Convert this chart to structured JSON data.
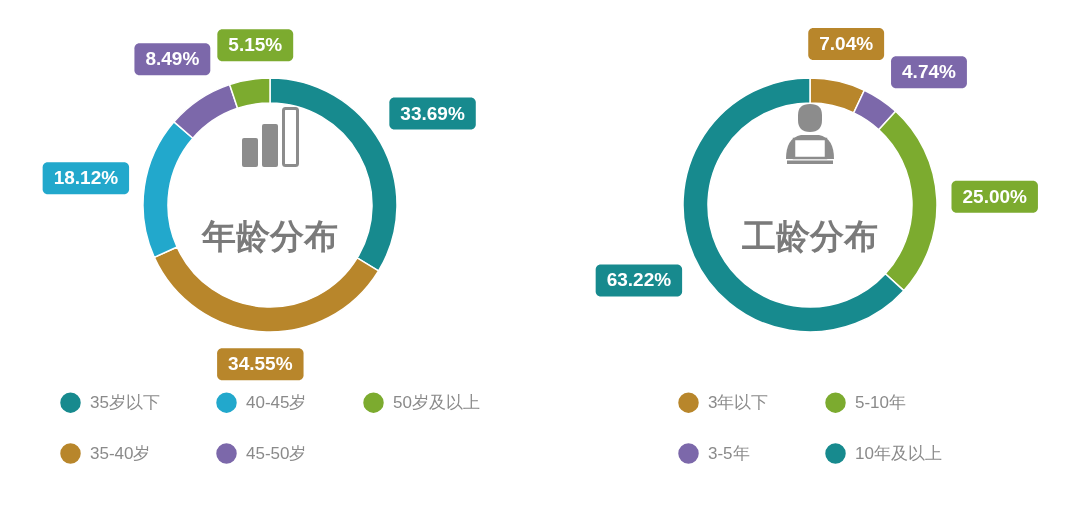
{
  "chart_data": [
    {
      "type": "donut",
      "title": "年龄分布",
      "categories": [
        "35岁以下",
        "35-40岁",
        "40-45岁",
        "45-50岁",
        "50岁及以上"
      ],
      "values": [
        33.69,
        34.55,
        18.12,
        8.49,
        5.15
      ],
      "colors": [
        "#178a8e",
        "#b8862b",
        "#22a8cc",
        "#7c68aa",
        "#7cab2f"
      ],
      "value_labels": [
        "33.69%",
        "34.55%",
        "18.12%",
        "8.49%",
        "5.15%"
      ],
      "legend": "bottom"
    },
    {
      "type": "donut",
      "title": "工龄分布",
      "categories": [
        "3年以下",
        "3-5年",
        "5-10年",
        "10年及以上"
      ],
      "values": [
        7.04,
        4.74,
        25.0,
        63.22
      ],
      "colors": [
        "#b8862b",
        "#7c68aa",
        "#7cab2f",
        "#178a8e"
      ],
      "value_labels": [
        "7.04%",
        "4.74%",
        "25.00%",
        "63.22%"
      ],
      "legend": "bottom"
    }
  ]
}
